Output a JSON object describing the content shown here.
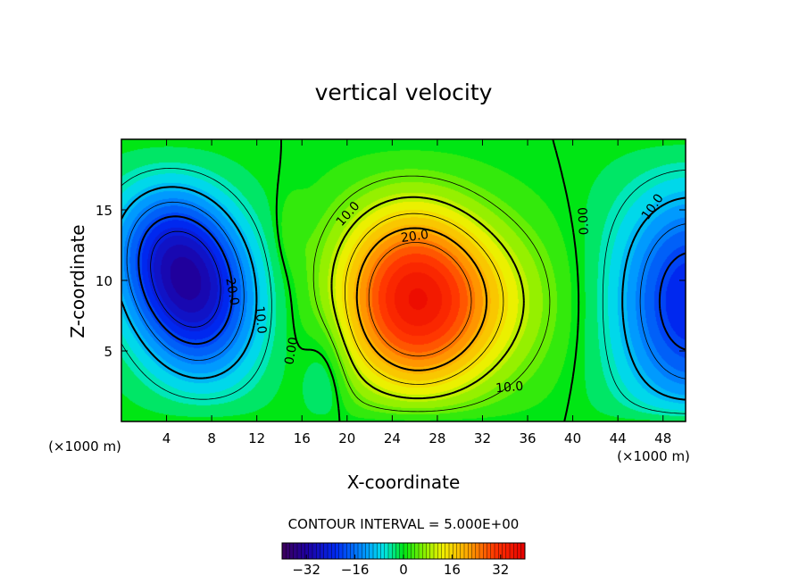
{
  "chart_data": {
    "type": "contour",
    "title": "vertical velocity",
    "xlabel": "X-coordinate",
    "ylabel": "Z-coordinate",
    "x_units": "(×1000 m)",
    "z_units": "(×1000 m)",
    "xlim": [
      0,
      50
    ],
    "zlim": [
      0,
      20
    ],
    "x_ticks": [
      4,
      8,
      12,
      16,
      20,
      24,
      28,
      32,
      36,
      40,
      44,
      48
    ],
    "z_ticks": [
      5,
      10,
      15
    ],
    "contour_interval_text": "CONTOUR INTERVAL = 5.000E+00",
    "contour_interval": 5.0,
    "colorbar": {
      "min": -40,
      "max": 40,
      "ticks": [
        -32,
        -16,
        0,
        16,
        32
      ]
    },
    "contour_labels": [
      {
        "text": "20.0",
        "x": 9.8,
        "z": 9.2,
        "rotation": 80
      },
      {
        "text": "10.0",
        "x": 12.3,
        "z": 7.2,
        "rotation": 85
      },
      {
        "text": "0.00",
        "x": 15.1,
        "z": 5.0,
        "rotation": -80
      },
      {
        "text": "10.0",
        "x": 20.1,
        "z": 14.7,
        "rotation": -48
      },
      {
        "text": "20.0",
        "x": 26.0,
        "z": 13.1,
        "rotation": -8
      },
      {
        "text": "0.00",
        "x": 41.0,
        "z": 14.2,
        "rotation": -93
      },
      {
        "text": "10.0",
        "x": 34.4,
        "z": 2.4,
        "rotation": -5
      },
      {
        "text": "10.0",
        "x": 47.1,
        "z": 15.2,
        "rotation": -55
      }
    ],
    "field_features": [
      {
        "name": "downdraft",
        "x": 6.5,
        "z": 9.5,
        "peak": -30
      },
      {
        "name": "updraft",
        "x": 25.5,
        "z": 8.7,
        "peak": 30
      },
      {
        "name": "downdraft-edge",
        "x": 50,
        "z": 8.5,
        "peak": -22
      }
    ]
  }
}
